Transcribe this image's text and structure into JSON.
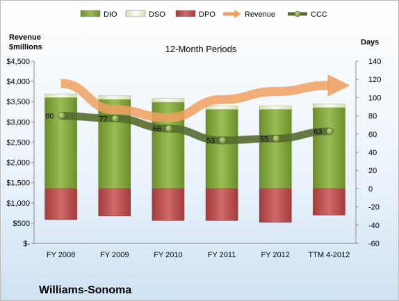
{
  "chart_data": {
    "type": "bar",
    "title": "12-Month Periods",
    "company": "Williams-Sonoma",
    "left_axis_label": [
      "Revenue",
      "$millions"
    ],
    "right_axis_label": "Days",
    "categories": [
      "FY 2008",
      "FY 2009",
      "FY 2010",
      "FY 2011",
      "FY 2012",
      "TTM 4-2012"
    ],
    "left_axis": {
      "min": 0,
      "max": 4500,
      "step": 500,
      "tick_labels": [
        "$-",
        "$500",
        "$1,000",
        "$1,500",
        "$2,000",
        "$2,500",
        "$3,000",
        "$3,500",
        "$4,000",
        "$4,500"
      ]
    },
    "right_axis": {
      "min": -60,
      "max": 140,
      "step": 20,
      "tick_labels": [
        "-60",
        "-40",
        "-20",
        "0",
        "20",
        "40",
        "60",
        "80",
        "100",
        "120",
        "140"
      ]
    },
    "grid": false,
    "legend_position": "top",
    "series": [
      {
        "name": "DIO",
        "type": "stacked-bar",
        "axis": "right",
        "color": "#7a9b3c",
        "values": [
          100,
          98,
          95,
          87,
          87,
          89
        ]
      },
      {
        "name": "DSO",
        "type": "stacked-bar",
        "axis": "right",
        "color": "#e8f1d0",
        "values": [
          4,
          4,
          4,
          4,
          4,
          4
        ]
      },
      {
        "name": "DPO",
        "type": "stacked-bar-negative",
        "axis": "right",
        "color": "#b84b4b",
        "values": [
          -34,
          -30,
          -35,
          -35,
          -37,
          -29
        ]
      },
      {
        "name": "Revenue",
        "type": "trend-arrow",
        "axis": "left",
        "color": "#f0a060",
        "values": [
          3950,
          3300,
          3100,
          3550,
          3750,
          3900
        ]
      },
      {
        "name": "CCC",
        "type": "trend-line",
        "axis": "right",
        "color": "#556b2f",
        "values": [
          80,
          77,
          66,
          53,
          55,
          63
        ]
      }
    ],
    "data_labels": [
      "80",
      "77",
      "66",
      "53",
      "55",
      "63"
    ]
  }
}
